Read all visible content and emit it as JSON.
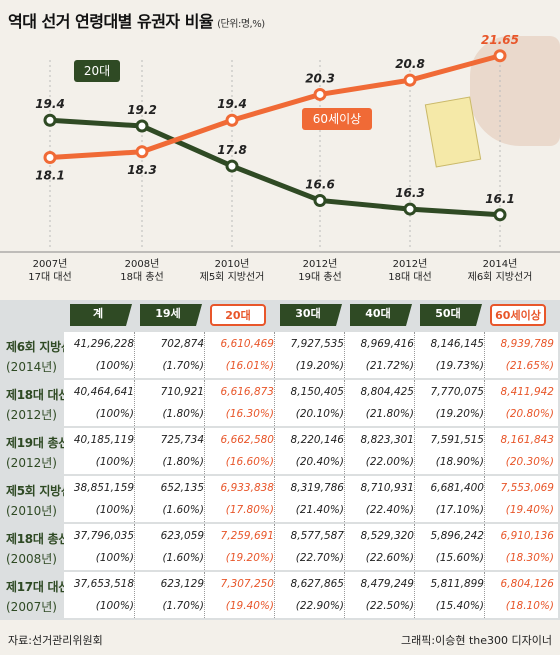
{
  "title": "역대 선거 연령대별 유권자 비율",
  "unit": "(단위:명,%)",
  "chart_data": {
    "type": "line",
    "categories": [
      [
        "2007년",
        "17대 대선"
      ],
      [
        "2008년",
        "18대 총선"
      ],
      [
        "2010년",
        "제5회 지방선거"
      ],
      [
        "2012년",
        "19대 총선"
      ],
      [
        "2012년",
        "18대 대선"
      ],
      [
        "2014년",
        "제6회 지방선거"
      ]
    ],
    "series": [
      {
        "name": "20대",
        "values": [
          19.4,
          19.2,
          17.8,
          16.6,
          16.3,
          16.1
        ],
        "value_labels": [
          "19.4",
          "19.2",
          "17.8",
          "16.6",
          "16.3",
          "16.1"
        ],
        "color": "#2f4a24"
      },
      {
        "name": "60세이상",
        "values": [
          18.1,
          18.3,
          19.4,
          20.3,
          20.8,
          21.65
        ],
        "value_labels": [
          "18.1",
          "18.3",
          "19.4",
          "20.3",
          "20.8",
          "21.65"
        ],
        "color": "#f06a36"
      }
    ],
    "ylim": [
      15.5,
      22.2
    ]
  },
  "table": {
    "headers": [
      "계",
      "19세",
      "20대",
      "30대",
      "40대",
      "50대",
      "60세이상"
    ],
    "rows": [
      {
        "label": "제6회 지방선거",
        "sub": "(2014년)",
        "counts": [
          "41,296,228",
          "702,874",
          "6,610,469",
          "7,927,535",
          "8,969,416",
          "8,146,145",
          "8,939,789"
        ],
        "pcts": [
          "(100%)",
          "(1.70%)",
          "(16.01%)",
          "(19.20%)",
          "(21.72%)",
          "(19.73%)",
          "(21.65%)"
        ]
      },
      {
        "label": "제18대 대선",
        "sub": "(2012년)",
        "counts": [
          "40,464,641",
          "710,921",
          "6,616,873",
          "8,150,405",
          "8,804,425",
          "7,770,075",
          "8,411,942"
        ],
        "pcts": [
          "(100%)",
          "(1.80%)",
          "(16.30%)",
          "(20.10%)",
          "(21.80%)",
          "(19.20%)",
          "(20.80%)"
        ]
      },
      {
        "label": "제19대 총선",
        "sub": "(2012년)",
        "counts": [
          "40,185,119",
          "725,734",
          "6,662,580",
          "8,220,146",
          "8,823,301",
          "7,591,515",
          "8,161,843"
        ],
        "pcts": [
          "(100%)",
          "(1.80%)",
          "(16.60%)",
          "(20.40%)",
          "(22.00%)",
          "(18.90%)",
          "(20.30%)"
        ]
      },
      {
        "label": "제5회 지방선거",
        "sub": "(2010년)",
        "counts": [
          "38,851,159",
          "652,135",
          "6,933,838",
          "8,319,786",
          "8,710,931",
          "6,681,400",
          "7,553,069"
        ],
        "pcts": [
          "(100%)",
          "(1.60%)",
          "(17.80%)",
          "(21.40%)",
          "(22.40%)",
          "(17.10%)",
          "(19.40%)"
        ]
      },
      {
        "label": "제18대 총선",
        "sub": "(2008년)",
        "counts": [
          "37,796,035",
          "623,059",
          "7,259,691",
          "8,577,587",
          "8,529,320",
          "5,896,242",
          "6,910,136"
        ],
        "pcts": [
          "(100%)",
          "(1.60%)",
          "(19.20%)",
          "(22.70%)",
          "(22.60%)",
          "(15.60%)",
          "(18.30%)"
        ]
      },
      {
        "label": "제17대 대선",
        "sub": "(2007년)",
        "counts": [
          "37,653,518",
          "623,129",
          "7,307,250",
          "8,627,865",
          "8,479,249",
          "5,811,899",
          "6,804,126"
        ],
        "pcts": [
          "(100%)",
          "(1.70%)",
          "(19.40%)",
          "(22.90%)",
          "(22.50%)",
          "(15.40%)",
          "(18.10%)"
        ]
      }
    ]
  },
  "source": "자료:선거관리위원회",
  "credit": "그래픽:이승현 the300 디자이너"
}
